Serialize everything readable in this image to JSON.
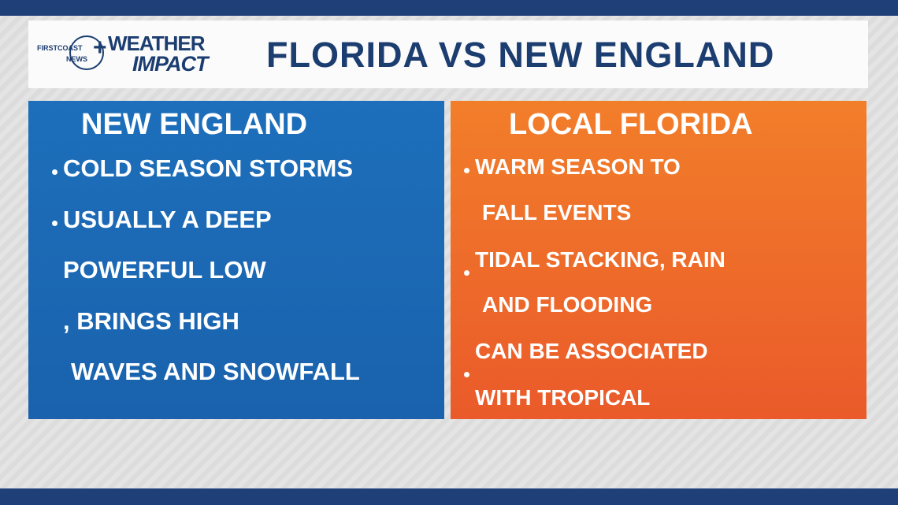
{
  "header": {
    "logo": {
      "station": "FIRSTCOAST",
      "network": "NEWS",
      "brand_top": "WEATHER",
      "brand_bottom": "IMPACT"
    },
    "title": "FLORIDA VS NEW ENGLAND"
  },
  "panels": [
    {
      "title": "NEW ENGLAND",
      "lines": [
        "COLD SEASON STORMS",
        "USUALLY A DEEP",
        "POWERFUL LOW",
        ", BRINGS HIGH",
        "WAVES AND SNOWFALL"
      ]
    },
    {
      "title": "LOCAL FLORIDA",
      "lines": [
        "WARM SEASON TO",
        "FALL EVENTS",
        "TIDAL STACKING, RAIN",
        "AND FLOODING",
        "CAN BE ASSOCIATED",
        "WITH TROPICAL"
      ]
    }
  ]
}
